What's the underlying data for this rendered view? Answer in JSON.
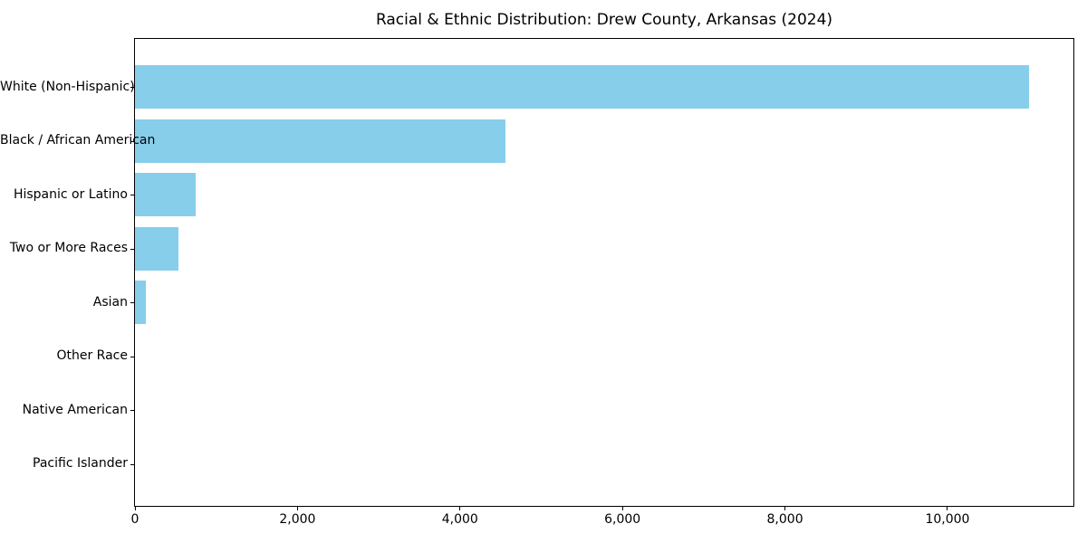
{
  "window": {
    "background_color": "#ffffff"
  },
  "chart_data": {
    "type": "bar",
    "orientation": "horizontal",
    "title": "Racial & Ethnic Distribution: Drew County, Arkansas (2024)",
    "xlabel": "",
    "ylabel": "",
    "categories": [
      "White (Non-Hispanic)",
      "Black / African American",
      "Hispanic or Latino",
      "Two or More Races",
      "Asian",
      "Other Race",
      "Native American",
      "Pacific Islander"
    ],
    "values": [
      11000,
      4560,
      750,
      540,
      135,
      0,
      0,
      0
    ],
    "xlim": [
      0,
      11550
    ],
    "xticks": [
      0,
      2000,
      4000,
      6000,
      8000,
      10000
    ],
    "xtick_labels": [
      "0",
      "2,000",
      "4,000",
      "6,000",
      "8,000",
      "10,000"
    ],
    "bar_color": "#87CEEB",
    "axis_color": "#000000",
    "text_color": "#000000",
    "grid": false,
    "legend": null,
    "bar_height_fraction": 0.8
  }
}
